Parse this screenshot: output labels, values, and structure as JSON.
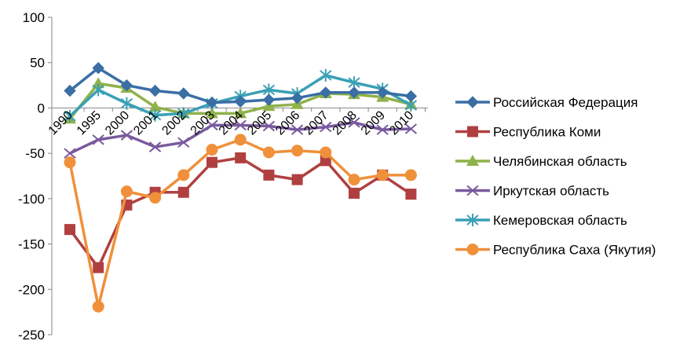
{
  "chart_data": {
    "type": "line",
    "title": "",
    "xlabel": "",
    "ylabel": "",
    "ylim": [
      -250,
      100
    ],
    "yticks": [
      100,
      50,
      0,
      -50,
      -100,
      -150,
      -200,
      -250
    ],
    "grid": false,
    "legend_position": "right",
    "categories": [
      "1990",
      "1995",
      "2000",
      "2001",
      "2002",
      "2003",
      "2004",
      "2005",
      "2006",
      "2007",
      "2008",
      "2009",
      "2010"
    ],
    "series": [
      {
        "name": "Российская Федерация",
        "color": "#3a6ea5",
        "marker": "diamond",
        "values": [
          19,
          44,
          25,
          19,
          16,
          6,
          7,
          9,
          11,
          17,
          17,
          17,
          13
        ]
      },
      {
        "name": "Республика Коми",
        "color": "#b04040",
        "marker": "square",
        "values": [
          -134,
          -176,
          -107,
          -93,
          -93,
          -60,
          -55,
          -74,
          -79,
          -58,
          -94,
          -74,
          -95
        ]
      },
      {
        "name": "Челябинская область",
        "color": "#8fb24a",
        "marker": "triangle",
        "values": [
          -12,
          27,
          22,
          1,
          -6,
          -6,
          -6,
          2,
          4,
          16,
          15,
          12,
          4
        ]
      },
      {
        "name": "Иркутская область",
        "color": "#7a5a9e",
        "marker": "x",
        "values": [
          -50,
          -35,
          -30,
          -43,
          -38,
          -19,
          -19,
          -20,
          -24,
          -21,
          -16,
          -24,
          -23
        ]
      },
      {
        "name": "Кемеровская область",
        "color": "#3aa0b5",
        "marker": "star",
        "values": [
          -9,
          20,
          5,
          -8,
          -6,
          5,
          13,
          20,
          16,
          36,
          28,
          21,
          3
        ]
      },
      {
        "name": "Республика Саха (Якутия)",
        "color": "#f0903a",
        "marker": "circle",
        "values": [
          -60,
          -219,
          -92,
          -99,
          -74,
          -46,
          -35,
          -49,
          -47,
          -49,
          -79,
          -74,
          -74
        ]
      }
    ]
  }
}
